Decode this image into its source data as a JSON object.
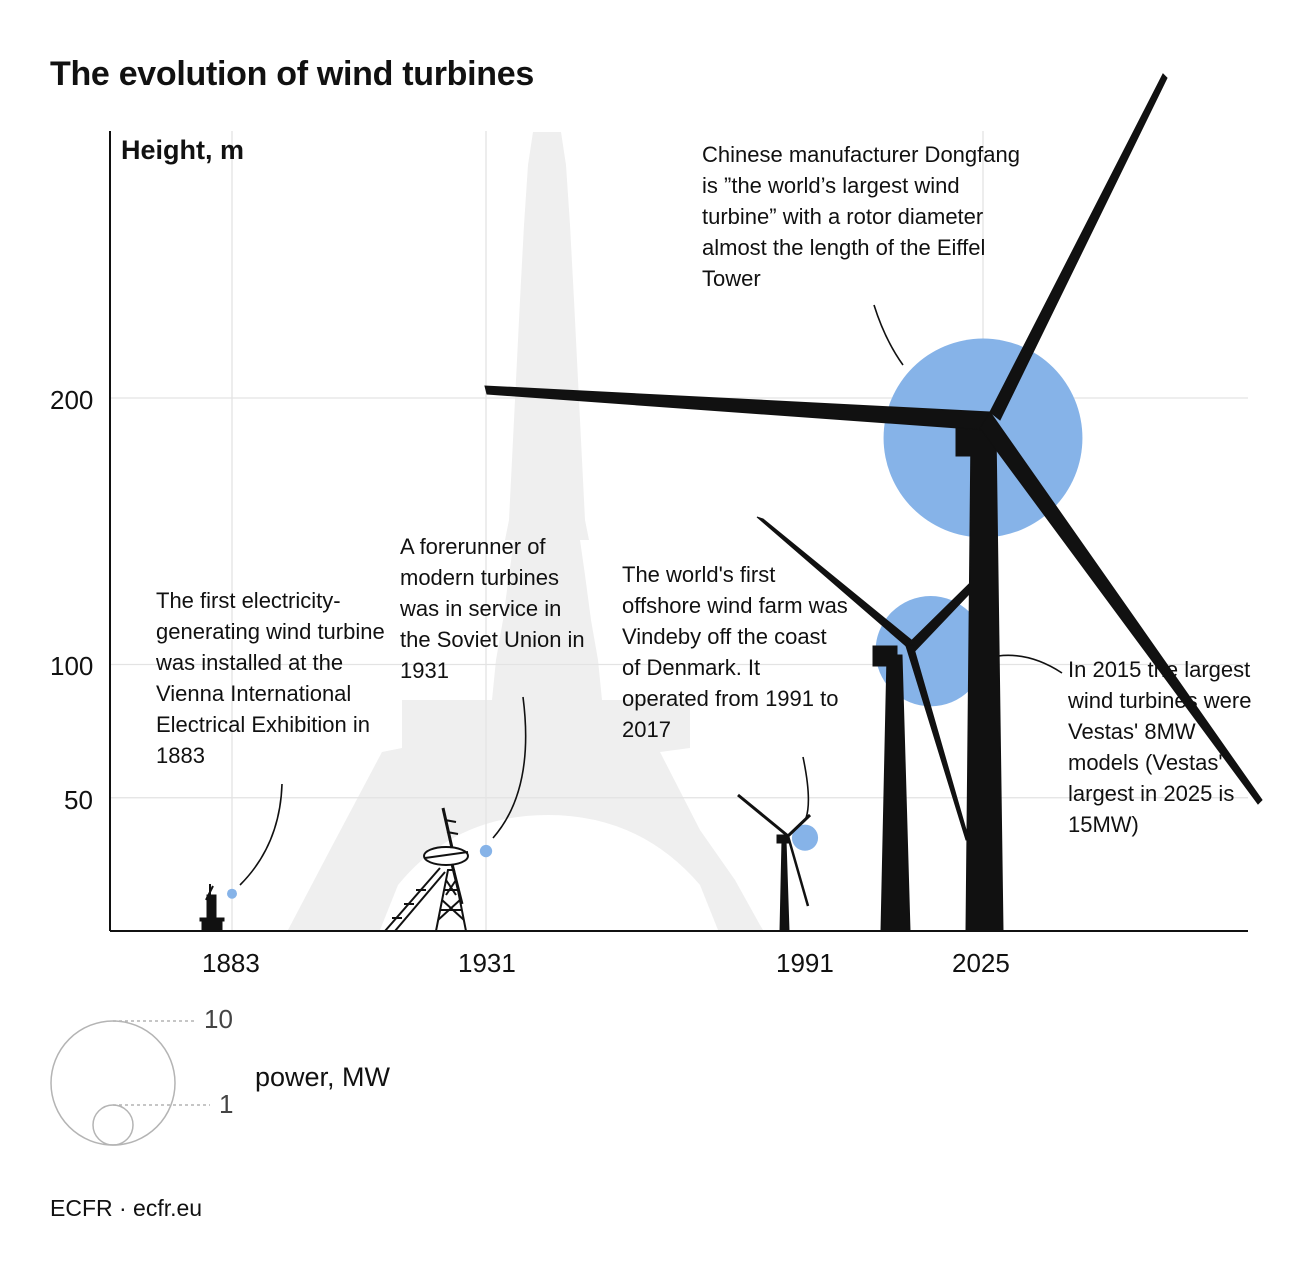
{
  "chart_data": {
    "type": "scatter",
    "title": "The evolution of wind turbines",
    "ylabel": "Height, m",
    "y_ticks": [
      "200",
      "100",
      "50"
    ],
    "x_ticks": [
      "1883",
      "1931",
      "1991",
      "2025"
    ],
    "size_legend": {
      "label": "power, MW",
      "values": [
        "10",
        "1"
      ]
    },
    "series": [
      {
        "points": [
          {
            "year": 1883,
            "height_m": 14,
            "power_mw": 0.01
          },
          {
            "year": 1931,
            "height_m": 30,
            "power_mw": 0.1
          },
          {
            "year": 1991,
            "height_m": 35,
            "power_mw": 0.45
          },
          {
            "year": 2015,
            "height_m": 105,
            "power_mw": 8
          },
          {
            "year": 2025,
            "height_m": 185,
            "power_mw": 26
          }
        ]
      }
    ],
    "annotations": [
      "The first electricity-generating wind turbine was installed at the Vienna International Electrical Exhibition in 1883",
      "A forerunner of modern turbines was in service in the Soviet Union in 1931",
      "The world's first offshore wind farm was Vindeby off the coast of Denmark. It operated from 1991 to 2017",
      "Chinese manufacturer Dongfang is ”the world’s largest wind turbine” with a rotor diameter almost the length of the Eiffel Tower",
      "In 2015 the largest wind turbines were Vestas' 8MW models (Vestas' largest in 2025 is 15MW)"
    ],
    "grid": true,
    "colors": {
      "bubble": "#86b3e8",
      "silhouette": "#000000",
      "eiffel": "#efefef",
      "grid": "#e3e3e3"
    }
  },
  "footer": "ECFR · ecfr.eu"
}
